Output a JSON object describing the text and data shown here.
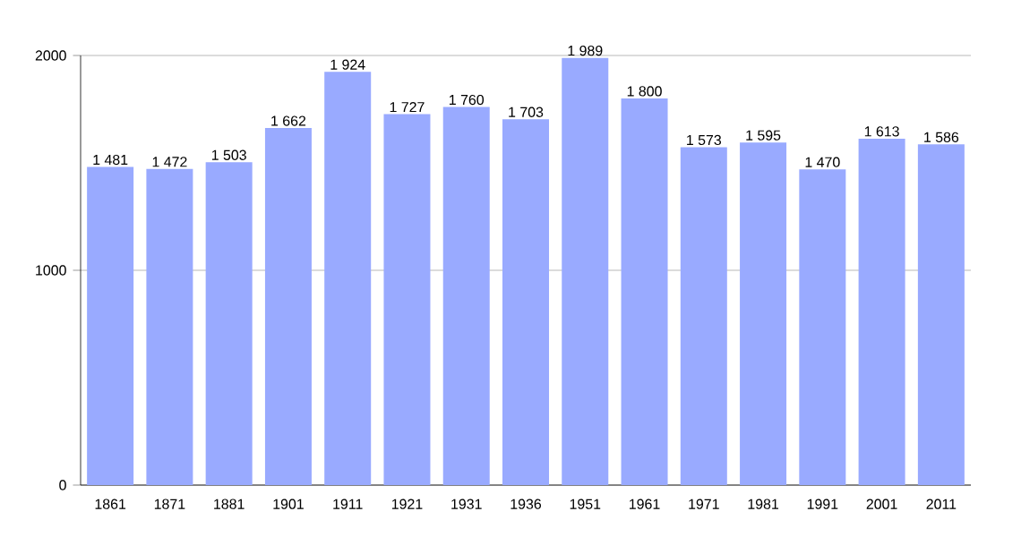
{
  "chart_data": {
    "type": "bar",
    "categories": [
      "1861",
      "1871",
      "1881",
      "1901",
      "1911",
      "1921",
      "1931",
      "1936",
      "1951",
      "1961",
      "1971",
      "1981",
      "1991",
      "2001",
      "2011"
    ],
    "values": [
      1481,
      1472,
      1503,
      1662,
      1924,
      1727,
      1760,
      1703,
      1989,
      1800,
      1573,
      1595,
      1470,
      1613,
      1586
    ],
    "value_labels": [
      "1 481",
      "1 472",
      "1 503",
      "1 662",
      "1 924",
      "1 727",
      "1 760",
      "1 703",
      "1 989",
      "1 800",
      "1 573",
      "1 595",
      "1 470",
      "1 613",
      "1 586"
    ],
    "color": "#99aaff",
    "ylim": [
      0,
      2000
    ],
    "yticks": [
      0,
      1000,
      2000
    ],
    "grid": "y"
  }
}
